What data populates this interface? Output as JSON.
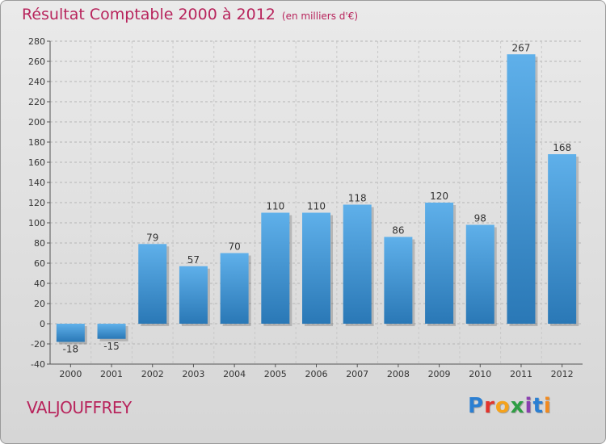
{
  "chart_data": {
    "type": "bar",
    "title": "Résultat Comptable 2000 à 2012",
    "unit_note": "(en milliers d'€)",
    "categories": [
      "2000",
      "2001",
      "2002",
      "2003",
      "2004",
      "2005",
      "2006",
      "2007",
      "2008",
      "2009",
      "2010",
      "2011",
      "2012"
    ],
    "values": [
      -18,
      -15,
      79,
      57,
      70,
      110,
      110,
      118,
      86,
      120,
      98,
      267,
      168
    ],
    "value_labels": [
      "-18",
      "-15",
      "79",
      "57",
      "70",
      "110",
      "110",
      "118",
      "86",
      "120",
      "98",
      "267",
      "168"
    ],
    "ylim": [
      -40,
      280
    ],
    "yticks": [
      280,
      260,
      240,
      220,
      200,
      180,
      160,
      140,
      120,
      100,
      80,
      60,
      40,
      20,
      0,
      -20,
      -40
    ],
    "ytick_labels": [
      "280",
      "260",
      "240",
      "220",
      "200",
      "180",
      "160",
      "140",
      "120",
      "100",
      "80",
      "60",
      "40",
      "20",
      "0",
      "-20",
      "-40"
    ],
    "xlabel": "",
    "ylabel": "",
    "grid": "horizontal dashed"
  },
  "footer": {
    "commune": "VALJOUFFREY",
    "brand": "Proxiti",
    "brand_letters": [
      "P",
      "r",
      "o",
      "x",
      "i",
      "t",
      "i"
    ],
    "brand_colors": [
      "#2b7fd2",
      "#e2342c",
      "#f5a21b",
      "#2e9e43",
      "#8a3fb0",
      "#2b7fd2",
      "#f28a1e"
    ]
  },
  "colors": {
    "title": "#b8245c",
    "bar_light": "#5fb0ea",
    "bar_dark": "#2a78b6",
    "axis": "#555555",
    "grid": "#b5b5b5"
  }
}
